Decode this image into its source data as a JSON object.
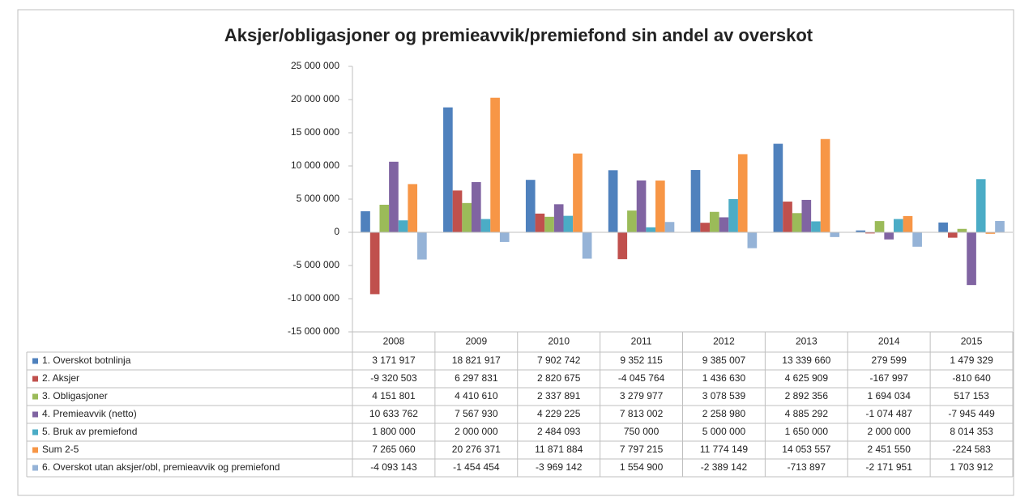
{
  "chart_data": {
    "type": "bar",
    "title": "Aksjer/obligasjoner og premieavvik/premiefond sin andel av overskot",
    "categories": [
      "2008",
      "2009",
      "2010",
      "2011",
      "2012",
      "2013",
      "2014",
      "2015"
    ],
    "series": [
      {
        "name": "1. Overskot botnlinja",
        "color": "#4f81bd",
        "values": [
          3171917,
          18821917,
          7902742,
          9352115,
          9385007,
          13339660,
          279599,
          1479329
        ],
        "value_labels": [
          "3 171 917",
          "18 821 917",
          "7 902 742",
          "9 352 115",
          "9 385 007",
          "13 339 660",
          "279 599",
          "1 479 329"
        ]
      },
      {
        "name": "2. Aksjer",
        "color": "#c0504d",
        "values": [
          -9320503,
          6297831,
          2820675,
          -4045764,
          1436630,
          4625909,
          -167997,
          -810640
        ],
        "value_labels": [
          "-9 320 503",
          "6 297 831",
          "2 820 675",
          "-4 045 764",
          "1 436 630",
          "4 625 909",
          "-167 997",
          "-810 640"
        ]
      },
      {
        "name": "3. Obligasjoner",
        "color": "#9bbb59",
        "values": [
          4151801,
          4410610,
          2337891,
          3279977,
          3078539,
          2892356,
          1694034,
          517153
        ],
        "value_labels": [
          "4 151 801",
          "4 410 610",
          "2 337 891",
          "3 279 977",
          "3 078 539",
          "2 892 356",
          "1 694 034",
          "517 153"
        ]
      },
      {
        "name": "4. Premieavvik (netto)",
        "color": "#8064a2",
        "values": [
          10633762,
          7567930,
          4229225,
          7813002,
          2258980,
          4885292,
          -1074487,
          -7945449
        ],
        "value_labels": [
          "10 633 762",
          "7 567 930",
          "4 229 225",
          "7 813 002",
          "2 258 980",
          "4 885 292",
          "-1 074 487",
          "-7 945 449"
        ]
      },
      {
        "name": "5. Bruk av premiefond",
        "color": "#4bacc6",
        "values": [
          1800000,
          2000000,
          2484093,
          750000,
          5000000,
          1650000,
          2000000,
          8014353
        ],
        "value_labels": [
          "1 800 000",
          "2 000 000",
          "2 484 093",
          "750 000",
          "5 000 000",
          "1 650 000",
          "2 000 000",
          "8 014 353"
        ]
      },
      {
        "name": "Sum 2-5",
        "color": "#f79646",
        "values": [
          7265060,
          20276371,
          11871884,
          7797215,
          11774149,
          14053557,
          2451550,
          -224583
        ],
        "value_labels": [
          "7 265 060",
          "20 276 371",
          "11 871 884",
          "7 797 215",
          "11 774 149",
          "14 053 557",
          "2 451 550",
          "-224 583"
        ]
      },
      {
        "name": "6. Overskot utan aksjer/obl, premieavvik og premiefond",
        "color": "#95b3d7",
        "values": [
          -4093143,
          -1454454,
          -3969142,
          1554900,
          -2389142,
          -713897,
          -2171951,
          1703912
        ],
        "value_labels": [
          "-4 093 143",
          "-1 454 454",
          "-3 969 142",
          "1 554 900",
          "-2 389 142",
          "-713 897",
          "-2 171 951",
          "1 703 912"
        ]
      }
    ],
    "ylim": [
      -15000000,
      25000000
    ],
    "yticks": [
      {
        "value": -15000000,
        "label": "-15 000 000"
      },
      {
        "value": -10000000,
        "label": "-10 000 000"
      },
      {
        "value": -5000000,
        "label": "-5 000 000"
      },
      0,
      {
        "value": 5000000,
        "label": "5 000 000"
      },
      {
        "value": 10000000,
        "label": "10 000 000"
      },
      {
        "value": 15000000,
        "label": "15 000 000"
      },
      {
        "value": 20000000,
        "label": "20 000 000"
      },
      {
        "value": 25000000,
        "label": "25 000 000"
      }
    ],
    "grid": false
  }
}
